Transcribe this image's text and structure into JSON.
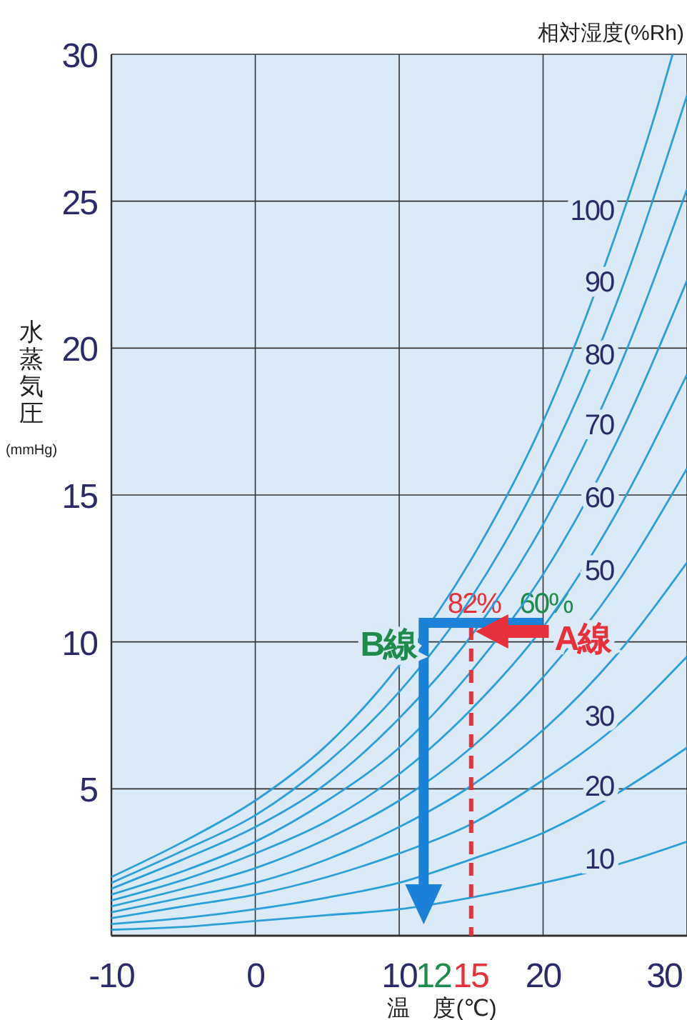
{
  "chart_data": {
    "type": "line",
    "xlabel": "温　度(℃)",
    "ylabel": "水蒸気圧(mmHg)",
    "legend_title": "相対湿度(%Rh)",
    "xlim": [
      -10,
      30
    ],
    "xticks": [
      -10,
      0,
      10,
      20,
      30
    ],
    "ylim": [
      0,
      30
    ],
    "yticks": [
      5,
      10,
      15,
      20,
      25,
      30
    ],
    "grid": true,
    "legend": false,
    "line_style": "solid",
    "x": [
      -10,
      -5,
      0,
      5,
      10,
      15,
      20,
      25,
      30
    ],
    "series": [
      {
        "name": "100",
        "color": "#2a9fd8",
        "x": [
          -10,
          -5,
          0,
          5,
          10,
          15,
          20,
          25,
          28,
          29
        ],
        "values": [
          2.0,
          3.2,
          4.6,
          6.5,
          9.2,
          12.8,
          17.5,
          23.8,
          28.3,
          30.0
        ]
      },
      {
        "name": "90",
        "color": "#2a9fd8",
        "values": [
          1.8,
          2.9,
          4.1,
          5.9,
          8.3,
          11.5,
          15.8,
          21.4,
          28.6
        ]
      },
      {
        "name": "80",
        "color": "#2a9fd8",
        "values": [
          1.6,
          2.6,
          3.7,
          5.2,
          7.4,
          10.2,
          14.0,
          19.0,
          25.4
        ]
      },
      {
        "name": "70",
        "color": "#2a9fd8",
        "values": [
          1.4,
          2.2,
          3.2,
          4.6,
          6.4,
          9.0,
          12.3,
          16.7,
          22.3
        ]
      },
      {
        "name": "60",
        "color": "#2a9fd8",
        "values": [
          1.2,
          1.9,
          2.8,
          3.9,
          5.5,
          7.7,
          10.5,
          14.3,
          19.1
        ]
      },
      {
        "name": "50",
        "color": "#2a9fd8",
        "values": [
          1.0,
          1.6,
          2.3,
          3.3,
          4.6,
          6.4,
          8.8,
          11.9,
          15.9
        ]
      },
      {
        "color": "#2a9fd8",
        "values": [
          0.8,
          1.3,
          1.8,
          2.6,
          3.7,
          5.1,
          7.0,
          9.5,
          12.7
        ]
      },
      {
        "name": "30",
        "color": "#2a9fd8",
        "values": [
          0.6,
          1.0,
          1.4,
          2.0,
          2.8,
          3.8,
          5.3,
          7.1,
          9.5
        ]
      },
      {
        "name": "20",
        "color": "#2a9fd8",
        "values": [
          0.4,
          0.6,
          0.9,
          1.3,
          1.8,
          2.6,
          3.5,
          4.8,
          6.4
        ]
      },
      {
        "name": "10",
        "color": "#2a9fd8",
        "values": [
          0.2,
          0.3,
          0.5,
          0.7,
          0.9,
          1.3,
          1.8,
          2.4,
          3.2
        ]
      },
      {
        "color": "#e8303a",
        "x": [
          15,
          15
        ],
        "values": [
          10.5,
          0
        ],
        "line_style": "dashed"
      }
    ],
    "annotations": [
      {
        "text": "82%",
        "x": 15,
        "y": 10.5
      },
      {
        "text": "60%",
        "x": 20,
        "y": 10.5
      },
      {
        "text": "A線",
        "x": 20,
        "y": 10.5
      },
      {
        "text": "B線",
        "x": 12,
        "y": 10.5
      },
      "12",
      "15"
    ]
  }
}
